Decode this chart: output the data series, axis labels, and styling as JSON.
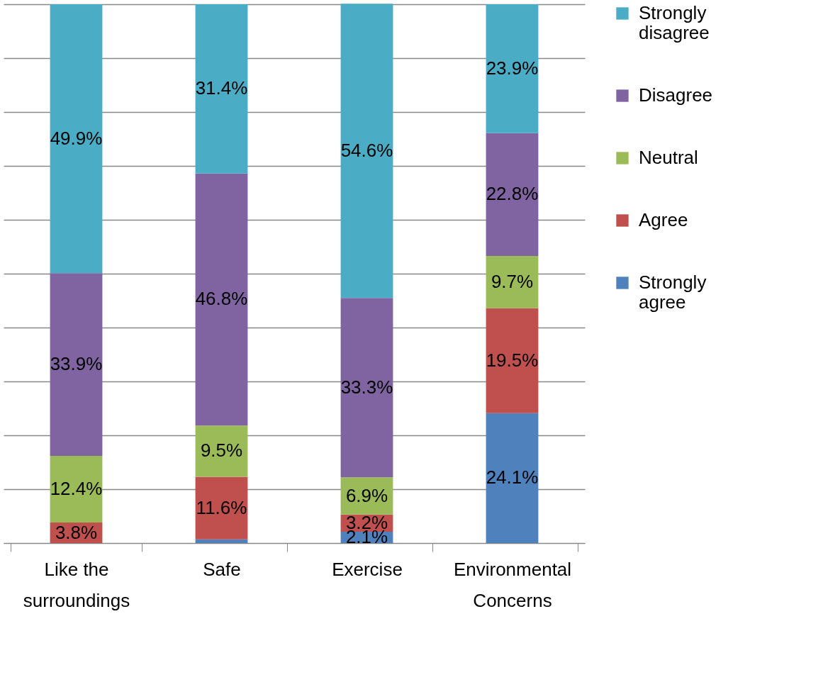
{
  "chart_data": {
    "type": "bar",
    "stacked": true,
    "categories": [
      "Like the\nsurroundings",
      "Safe",
      "Exercise",
      "Environmental\nConcerns"
    ],
    "series": [
      {
        "name": "Strongly agree",
        "color": "#4f81bd",
        "values": [
          null,
          0.7,
          2.1,
          24.1
        ],
        "value_labels": [
          null,
          null,
          "2.1%",
          "24.1%"
        ]
      },
      {
        "name": "Agree",
        "color": "#c0504d",
        "values": [
          3.8,
          11.6,
          3.2,
          19.5
        ],
        "value_labels": [
          "3.8%",
          "11.6%",
          "3.2%",
          "19.5%"
        ]
      },
      {
        "name": "Neutral",
        "color": "#9bbb59",
        "values": [
          12.4,
          9.5,
          6.9,
          9.7
        ],
        "value_labels": [
          "12.4%",
          "9.5%",
          "6.9%",
          "9.7%"
        ]
      },
      {
        "name": "Disagree",
        "color": "#8064a2",
        "values": [
          33.9,
          46.8,
          33.3,
          22.8
        ],
        "value_labels": [
          "33.9%",
          "46.8%",
          "33.3%",
          "22.8%"
        ]
      },
      {
        "name": "Strongly disagree",
        "color": "#4bacc6",
        "values": [
          49.9,
          31.4,
          54.6,
          23.9
        ],
        "value_labels": [
          "49.9%",
          "31.4%",
          "54.6%",
          "23.9%"
        ]
      }
    ],
    "ylim": [
      0,
      100
    ],
    "yticks": [
      0,
      10,
      20,
      30,
      40,
      50,
      60,
      70,
      80,
      90,
      100
    ],
    "tick_labels": "x",
    "grid": "y",
    "legend": "right"
  }
}
